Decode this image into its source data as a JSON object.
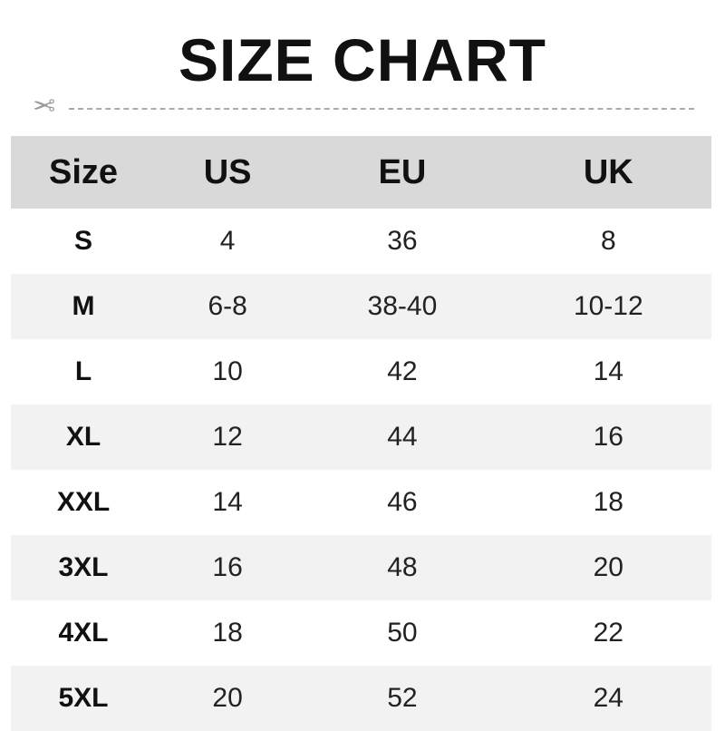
{
  "title": "SIZE CHART",
  "headers": [
    "Size",
    "US",
    "EU",
    "UK"
  ],
  "rows": [
    [
      "S",
      "4",
      "36",
      "8"
    ],
    [
      "M",
      "6-8",
      "38-40",
      "10-12"
    ],
    [
      "L",
      "10",
      "42",
      "14"
    ],
    [
      "XL",
      "12",
      "44",
      "16"
    ],
    [
      "XXL",
      "14",
      "46",
      "18"
    ],
    [
      "3XL",
      "16",
      "48",
      "20"
    ],
    [
      "4XL",
      "18",
      "50",
      "22"
    ],
    [
      "5XL",
      "20",
      "52",
      "24"
    ]
  ],
  "colors": {
    "header_bg": "#d9d9d9",
    "alt_row_bg": "#f2f2f2"
  }
}
